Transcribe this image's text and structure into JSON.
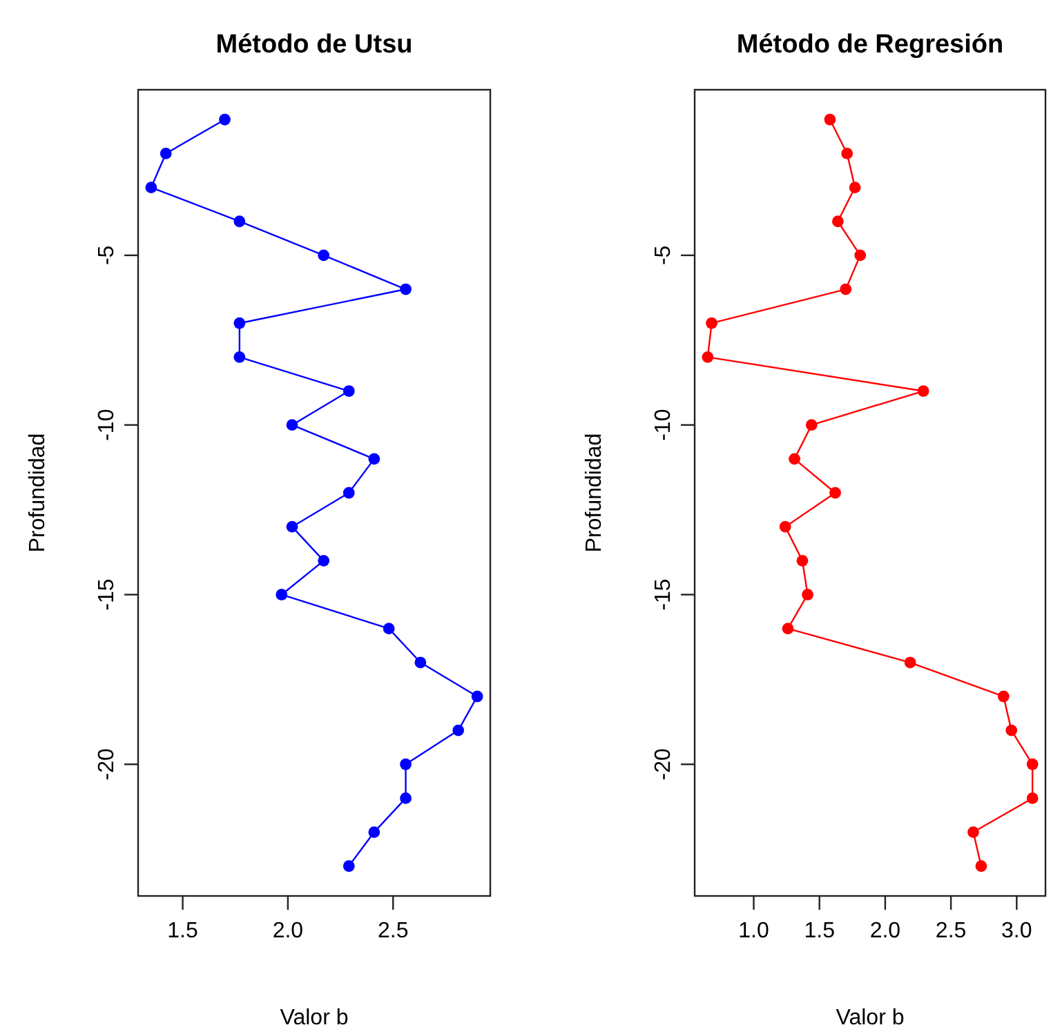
{
  "chart_data": [
    {
      "type": "line",
      "orientation": "horizontal",
      "title": "Método de Utsu",
      "xlabel": "Valor b",
      "ylabel": "Profundidad",
      "marker": "circle",
      "grid": false,
      "xlim": [
        1.288,
        2.962
      ],
      "xticks": [
        {
          "value": 1.5,
          "label": "1.5"
        },
        {
          "value": 2,
          "label": "2.0"
        },
        {
          "value": 2.5,
          "label": "2.5"
        }
      ],
      "ylim": [
        -23.88,
        -0.12
      ],
      "yticks": [
        -5,
        -10,
        -15,
        -20
      ],
      "series": [
        {
          "color": "#0000ff",
          "x": [
            -1,
            -2,
            -3,
            -4,
            -5,
            -6,
            -7,
            -8,
            -9,
            -10,
            -11,
            -12,
            -13,
            -14,
            -15,
            -16,
            -17,
            -18,
            -19,
            -20,
            -21,
            -22,
            -23
          ],
          "values": [
            1.7,
            1.42,
            1.35,
            1.77,
            2.17,
            2.56,
            1.77,
            1.77,
            2.29,
            2.02,
            2.41,
            2.29,
            2.02,
            2.17,
            1.97,
            2.48,
            2.63,
            2.9,
            2.81,
            2.56,
            2.56,
            2.41,
            2.29
          ]
        }
      ]
    },
    {
      "type": "line",
      "orientation": "horizontal",
      "title": "Método de Regresión",
      "xlabel": "Valor b",
      "ylabel": "Profundidad",
      "marker": "circle",
      "grid": false,
      "xlim": [
        0.551,
        3.219
      ],
      "xticks": [
        {
          "value": 1,
          "label": "1.0"
        },
        {
          "value": 1.5,
          "label": "1.5"
        },
        {
          "value": 2,
          "label": "2.0"
        },
        {
          "value": 2.5,
          "label": "2.5"
        },
        {
          "value": 3,
          "label": "3.0"
        }
      ],
      "ylim": [
        -23.88,
        -0.12
      ],
      "yticks": [
        -5,
        -10,
        -15,
        -20
      ],
      "series": [
        {
          "color": "#ff0000",
          "x": [
            -1,
            -2,
            -3,
            -4,
            -5,
            -6,
            -7,
            -8,
            -9,
            -10,
            -11,
            -12,
            -13,
            -14,
            -15,
            -16,
            -17,
            -18,
            -19,
            -20,
            -21,
            -22,
            -23
          ],
          "values": [
            1.58,
            1.71,
            1.77,
            1.64,
            1.81,
            1.7,
            0.68,
            0.65,
            2.29,
            1.44,
            1.31,
            1.62,
            1.24,
            1.37,
            1.41,
            1.26,
            2.19,
            2.9,
            2.96,
            3.12,
            3.12,
            2.67,
            2.73
          ]
        }
      ]
    }
  ]
}
